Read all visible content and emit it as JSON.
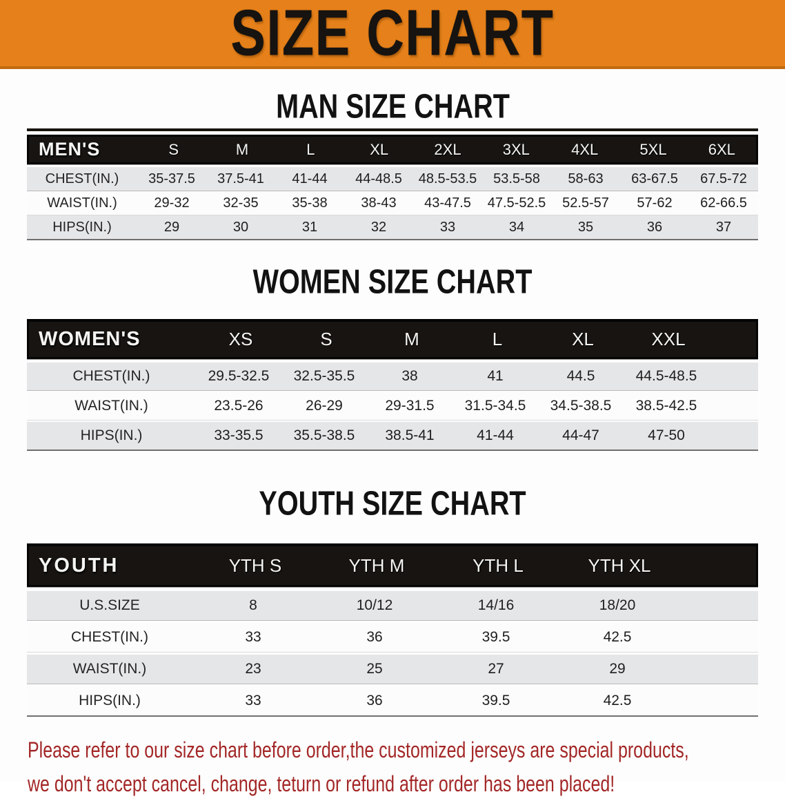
{
  "banner": {
    "title": "SIZE CHART",
    "background_color": "#E5801A",
    "title_color": "#161310"
  },
  "sections": [
    {
      "heading": "MAN SIZE CHART",
      "table": {
        "label": "MEN'S",
        "sizes": [
          "S",
          "M",
          "L",
          "XL",
          "2XL",
          "3XL",
          "4XL",
          "5XL",
          "6XL"
        ],
        "rows": [
          {
            "label": "CHEST(IN.)",
            "values": [
              "35-37.5",
              "37.5-41",
              "41-44",
              "44-48.5",
              "48.5-53.5",
              "53.5-58",
              "58-63",
              "63-67.5",
              "67.5-72"
            ]
          },
          {
            "label": "WAIST(IN.)",
            "values": [
              "29-32",
              "32-35",
              "35-38",
              "38-43",
              "43-47.5",
              "47.5-52.5",
              "52.5-57",
              "57-62",
              "62-66.5"
            ]
          },
          {
            "label": "HIPS(IN.)",
            "values": [
              "29",
              "30",
              "31",
              "32",
              "33",
              "34",
              "35",
              "36",
              "37"
            ]
          }
        ]
      }
    },
    {
      "heading": "WOMEN SIZE CHART",
      "table": {
        "label": "WOMEN'S",
        "sizes": [
          "XS",
          "S",
          "M",
          "L",
          "XL",
          "XXL"
        ],
        "rows": [
          {
            "label": "CHEST(IN.)",
            "values": [
              "29.5-32.5",
              "32.5-35.5",
              "38",
              "41",
              "44.5",
              "44.5-48.5"
            ]
          },
          {
            "label": "WAIST(IN.)",
            "values": [
              "23.5-26",
              "26-29",
              "29-31.5",
              "31.5-34.5",
              "34.5-38.5",
              "38.5-42.5"
            ]
          },
          {
            "label": "HIPS(IN.)",
            "values": [
              "33-35.5",
              "35.5-38.5",
              "38.5-41",
              "41-44",
              "44-47",
              "47-50"
            ]
          }
        ]
      }
    },
    {
      "heading": "YOUTH SIZE CHART",
      "table": {
        "label": "YOUTH",
        "sizes": [
          "YTH S",
          "YTH M",
          "YTH L",
          "YTH XL"
        ],
        "rows": [
          {
            "label": "U.S.SIZE",
            "values": [
              "8",
              "10/12",
              "14/16",
              "18/20"
            ]
          },
          {
            "label": "CHEST(IN.)",
            "values": [
              "33",
              "36",
              "39.5",
              "42.5"
            ]
          },
          {
            "label": "WAIST(IN.)",
            "values": [
              "23",
              "25",
              "27",
              "29"
            ]
          },
          {
            "label": "HIPS(IN.)",
            "values": [
              "33",
              "36",
              "39.5",
              "42.5"
            ]
          }
        ]
      }
    }
  ],
  "disclaimer": {
    "line1": "Please refer to our size chart before order,the customized jerseys are special products,",
    "line2": "we don't accept cancel, change, teturn or refund after order has been placed!",
    "text_color": "#A32727"
  },
  "colors": {
    "banner_orange": "#E5801A",
    "banner_edge": "#C2690F",
    "header_band_black": "#171412",
    "row_gray": "#E5E6E7",
    "row_white": "#FCFCFC",
    "disclaimer_red": "#A32727"
  }
}
